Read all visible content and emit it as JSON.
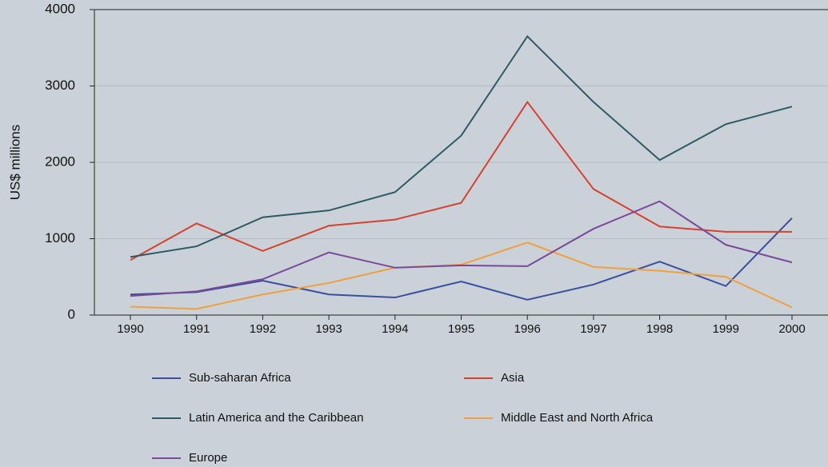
{
  "chart_data": {
    "type": "line",
    "y_label": "US$ millions",
    "categories": [
      "1990",
      "1991",
      "1992",
      "1993",
      "1994",
      "1995",
      "1996",
      "1997",
      "1998",
      "1999",
      "2000"
    ],
    "series": [
      {
        "name": "Sub-saharan Africa",
        "color": "#3a4fa0",
        "values": [
          270,
          300,
          450,
          270,
          230,
          440,
          200,
          400,
          700,
          380,
          1270
        ]
      },
      {
        "name": "Asia",
        "color": "#d9412f",
        "values": [
          720,
          1200,
          840,
          1170,
          1250,
          1470,
          2790,
          1650,
          1160,
          1090,
          1090
        ]
      },
      {
        "name": "Latin America and the Caribbean",
        "color": "#2e5a66",
        "values": [
          760,
          900,
          1280,
          1370,
          1610,
          2350,
          3650,
          2790,
          2030,
          2500,
          2730
        ]
      },
      {
        "name": "Middle East and North Africa",
        "color": "#f0a040",
        "values": [
          110,
          80,
          270,
          420,
          620,
          660,
          950,
          630,
          580,
          500,
          100
        ]
      },
      {
        "name": "Europe",
        "color": "#7a4a9a",
        "values": [
          250,
          310,
          470,
          820,
          620,
          650,
          640,
          1130,
          1490,
          920,
          690
        ]
      }
    ],
    "ylim": [
      0,
      4000
    ],
    "yticks": [
      0,
      1000,
      2000,
      3000,
      4000
    ],
    "grid": true,
    "legend": "bottom"
  }
}
